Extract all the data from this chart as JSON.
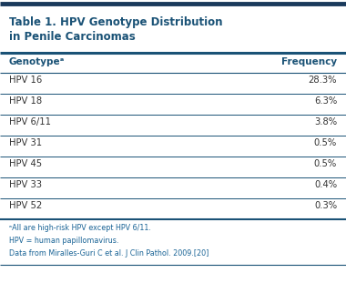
{
  "title_line1": "Table 1. HPV Genotype Distribution",
  "title_line2": "in Penile Carcinomas",
  "title_color": "#1a5276",
  "header_col1": "Genotypeᵃ",
  "header_col2": "Frequency",
  "header_color": "#1a5276",
  "rows": [
    [
      "HPV 16",
      "28.3%"
    ],
    [
      "HPV 18",
      "6.3%"
    ],
    [
      "HPV 6/11",
      "3.8%"
    ],
    [
      "HPV 31",
      "0.5%"
    ],
    [
      "HPV 45",
      "0.5%"
    ],
    [
      "HPV 33",
      "0.4%"
    ],
    [
      "HPV 52",
      "0.3%"
    ]
  ],
  "row_text_color": "#333333",
  "footnote_lines": [
    "ᵃAll are high-risk HPV except HPV 6/11.",
    "HPV = human papillomavirus.",
    "Data from Miralles-Guri C et al. J Clin Pathol. 2009.[20]"
  ],
  "footnote_color": "#1a6496",
  "line_color": "#1a5276",
  "bg_color": "#ffffff",
  "top_bar_color": "#1a3a5c",
  "title_fontsize": 8.5,
  "header_fontsize": 7.5,
  "row_fontsize": 7.2,
  "footnote_fontsize": 5.8
}
